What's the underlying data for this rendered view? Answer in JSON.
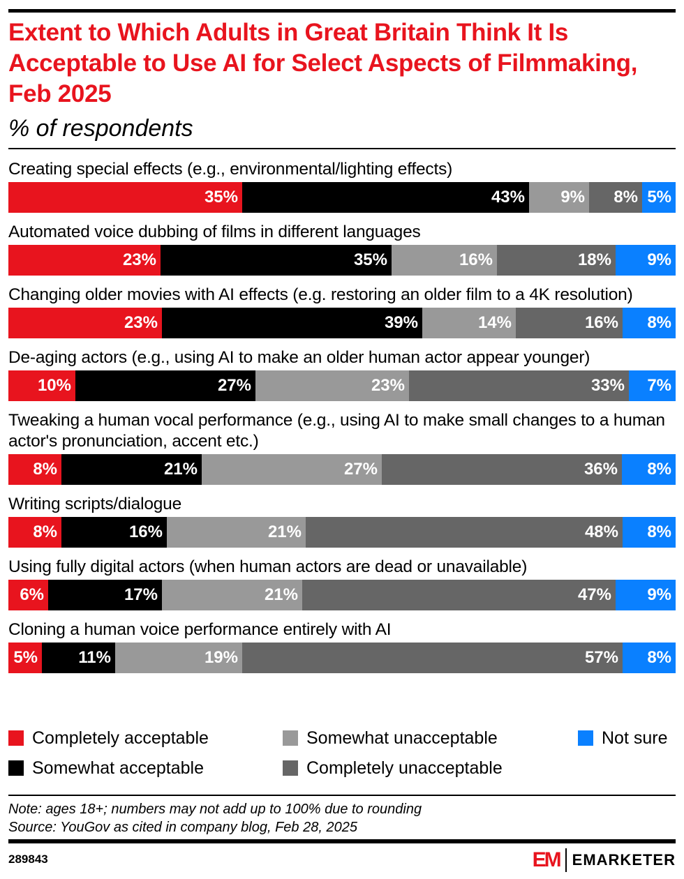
{
  "chart_data": {
    "type": "bar",
    "orientation": "horizontal",
    "stacked": true,
    "title": "Extent to Which Adults in Great Britain Think It Is Acceptable to Use AI for Select Aspects of Filmmaking, Feb 2025",
    "subtitle": "% of respondents",
    "categories": [
      "Creating special effects (e.g., environmental/lighting effects)",
      "Automated voice dubbing of films in different languages",
      "Changing older movies with AI effects (e.g. restoring an older film to a 4K resolution)",
      "De-aging actors (e.g., using AI to make an older human actor appear younger)",
      "Tweaking a human vocal performance (e.g., using AI to make small changes to a human actor's pronunciation, accent etc.)",
      "Writing scripts/dialogue",
      "Using fully digital actors (when human actors are dead or unavailable)",
      "Cloning a human voice performance entirely with AI"
    ],
    "series": [
      {
        "name": "Completely acceptable",
        "color": "#e8141e",
        "values": [
          35,
          23,
          23,
          10,
          8,
          8,
          6,
          5
        ]
      },
      {
        "name": "Somewhat acceptable",
        "color": "#000000",
        "values": [
          43,
          35,
          39,
          27,
          21,
          16,
          17,
          11
        ]
      },
      {
        "name": "Somewhat unacceptable",
        "color": "#999999",
        "values": [
          9,
          16,
          14,
          23,
          27,
          21,
          21,
          19
        ]
      },
      {
        "name": "Completely unacceptable",
        "color": "#666666",
        "values": [
          8,
          18,
          16,
          33,
          36,
          48,
          47,
          57
        ]
      },
      {
        "name": "Not sure",
        "color": "#0a80ff",
        "values": [
          5,
          9,
          8,
          7,
          8,
          8,
          9,
          8
        ]
      }
    ],
    "unit": "%",
    "legend": "bottom"
  },
  "footer": {
    "note": "Note: ages 18+; numbers may not add up to 100% due to rounding",
    "source": "Source: YouGov as cited in company blog, Feb 28, 2025",
    "chart_id": "289843",
    "brand": "EMARKETER",
    "brand_mark": "EM"
  }
}
